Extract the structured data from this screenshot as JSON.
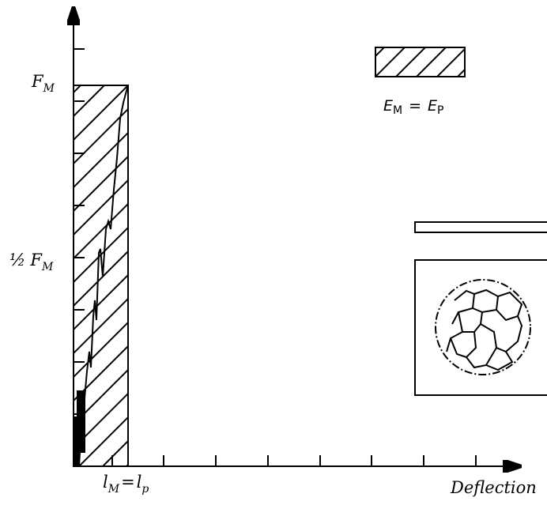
{
  "y_axis": {
    "max_label": {
      "symbol": "F",
      "subscript": "M"
    },
    "half_label": {
      "fraction": "½",
      "symbol": "F",
      "subscript": "M"
    }
  },
  "x_axis": {
    "point_label": {
      "left_symbol": "l",
      "left_subscript": "M",
      "equals": "=",
      "right_symbol": "l",
      "right_subscript": "p"
    },
    "title": "Deflection"
  },
  "legend": {
    "left_symbol": "E",
    "left_subscript": "M",
    "equals": "=",
    "right_symbol": "E",
    "right_subscript": "P"
  }
}
